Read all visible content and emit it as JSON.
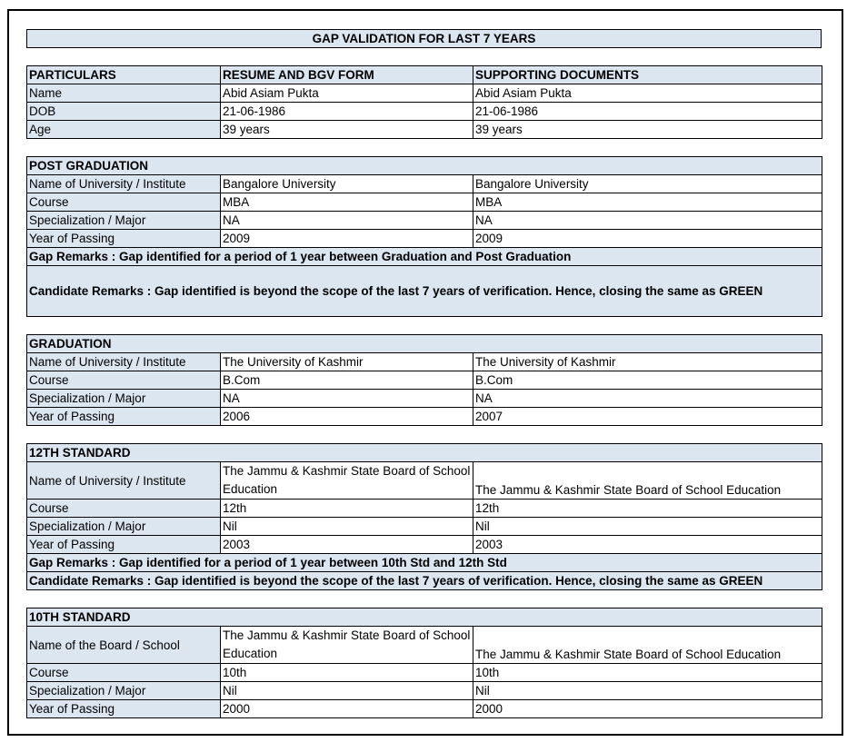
{
  "title": "GAP VALIDATION FOR LAST 7 YEARS",
  "particulars": {
    "headers": [
      "PARTICULARS",
      "RESUME AND BGV FORM",
      "SUPPORTING DOCUMENTS"
    ],
    "rows": [
      [
        "Name",
        "Abid Asiam Pukta",
        "Abid Asiam Pukta"
      ],
      [
        "DOB",
        "21-06-1986",
        "21-06-1986"
      ],
      [
        "Age",
        "39 years",
        "39 years"
      ]
    ]
  },
  "post_graduation": {
    "heading": "POST GRADUATION",
    "rows": [
      [
        "Name of University / Institute",
        "Bangalore University",
        "Bangalore University"
      ],
      [
        "Course",
        "MBA",
        "MBA"
      ],
      [
        "Specialization / Major",
        "NA",
        "NA"
      ],
      [
        "Year of Passing",
        "2009",
        "2009"
      ]
    ],
    "gap_remarks": "Gap Remarks : Gap identified for a period of  1 year between Graduation and Post Graduation",
    "candidate_remarks": "Candidate Remarks : Gap identified is beyond the scope of the last 7 years of verification. Hence, closing the same as GREEN"
  },
  "graduation": {
    "heading": "GRADUATION",
    "rows": [
      [
        "Name of University / Institute",
        "The University of Kashmir",
        "The University of Kashmir"
      ],
      [
        "Course",
        "B.Com",
        "B.Com"
      ],
      [
        "Specialization / Major",
        "NA",
        "NA"
      ],
      [
        "Year of Passing",
        "2006",
        "2007"
      ]
    ]
  },
  "twelfth": {
    "heading": "12TH STANDARD",
    "rows": [
      [
        "Name of University / Institute",
        "The Jammu & Kashmir State Board of School Education",
        "The Jammu & Kashmir State Board of School Education"
      ],
      [
        "Course",
        "12th",
        "12th"
      ],
      [
        "Specialization / Major",
        "Nil",
        "Nil"
      ],
      [
        "Year of Passing",
        "2003",
        "2003"
      ]
    ],
    "gap_remarks": "Gap Remarks : Gap identified for a period of  1 year between 10th Std and 12th Std",
    "candidate_remarks": "Candidate Remarks : Gap identified is beyond the scope of the last 7 years of verification. Hence, closing the same as GREEN"
  },
  "tenth": {
    "heading": "10TH STANDARD",
    "rows": [
      [
        "Name of the Board / School",
        "The Jammu & Kashmir State Board of School Education",
        "The Jammu & Kashmir State Board of School Education"
      ],
      [
        "Course",
        "10th",
        "10th"
      ],
      [
        "Specialization / Major",
        "Nil",
        "Nil"
      ],
      [
        "Year of Passing",
        "2000",
        "2000"
      ]
    ]
  }
}
